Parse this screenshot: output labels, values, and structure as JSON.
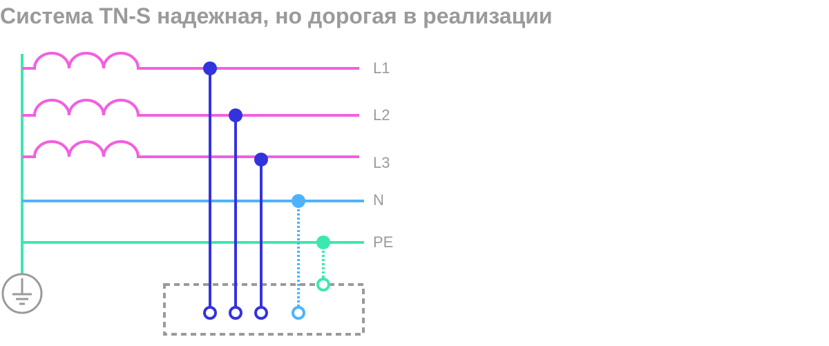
{
  "header": {
    "title": "Система TN-S надежная, но дорогая в реализации"
  },
  "lines": [
    {
      "label": "L1"
    },
    {
      "label": "L2"
    },
    {
      "label": "L3"
    },
    {
      "label": "N"
    },
    {
      "label": "PE"
    }
  ]
}
